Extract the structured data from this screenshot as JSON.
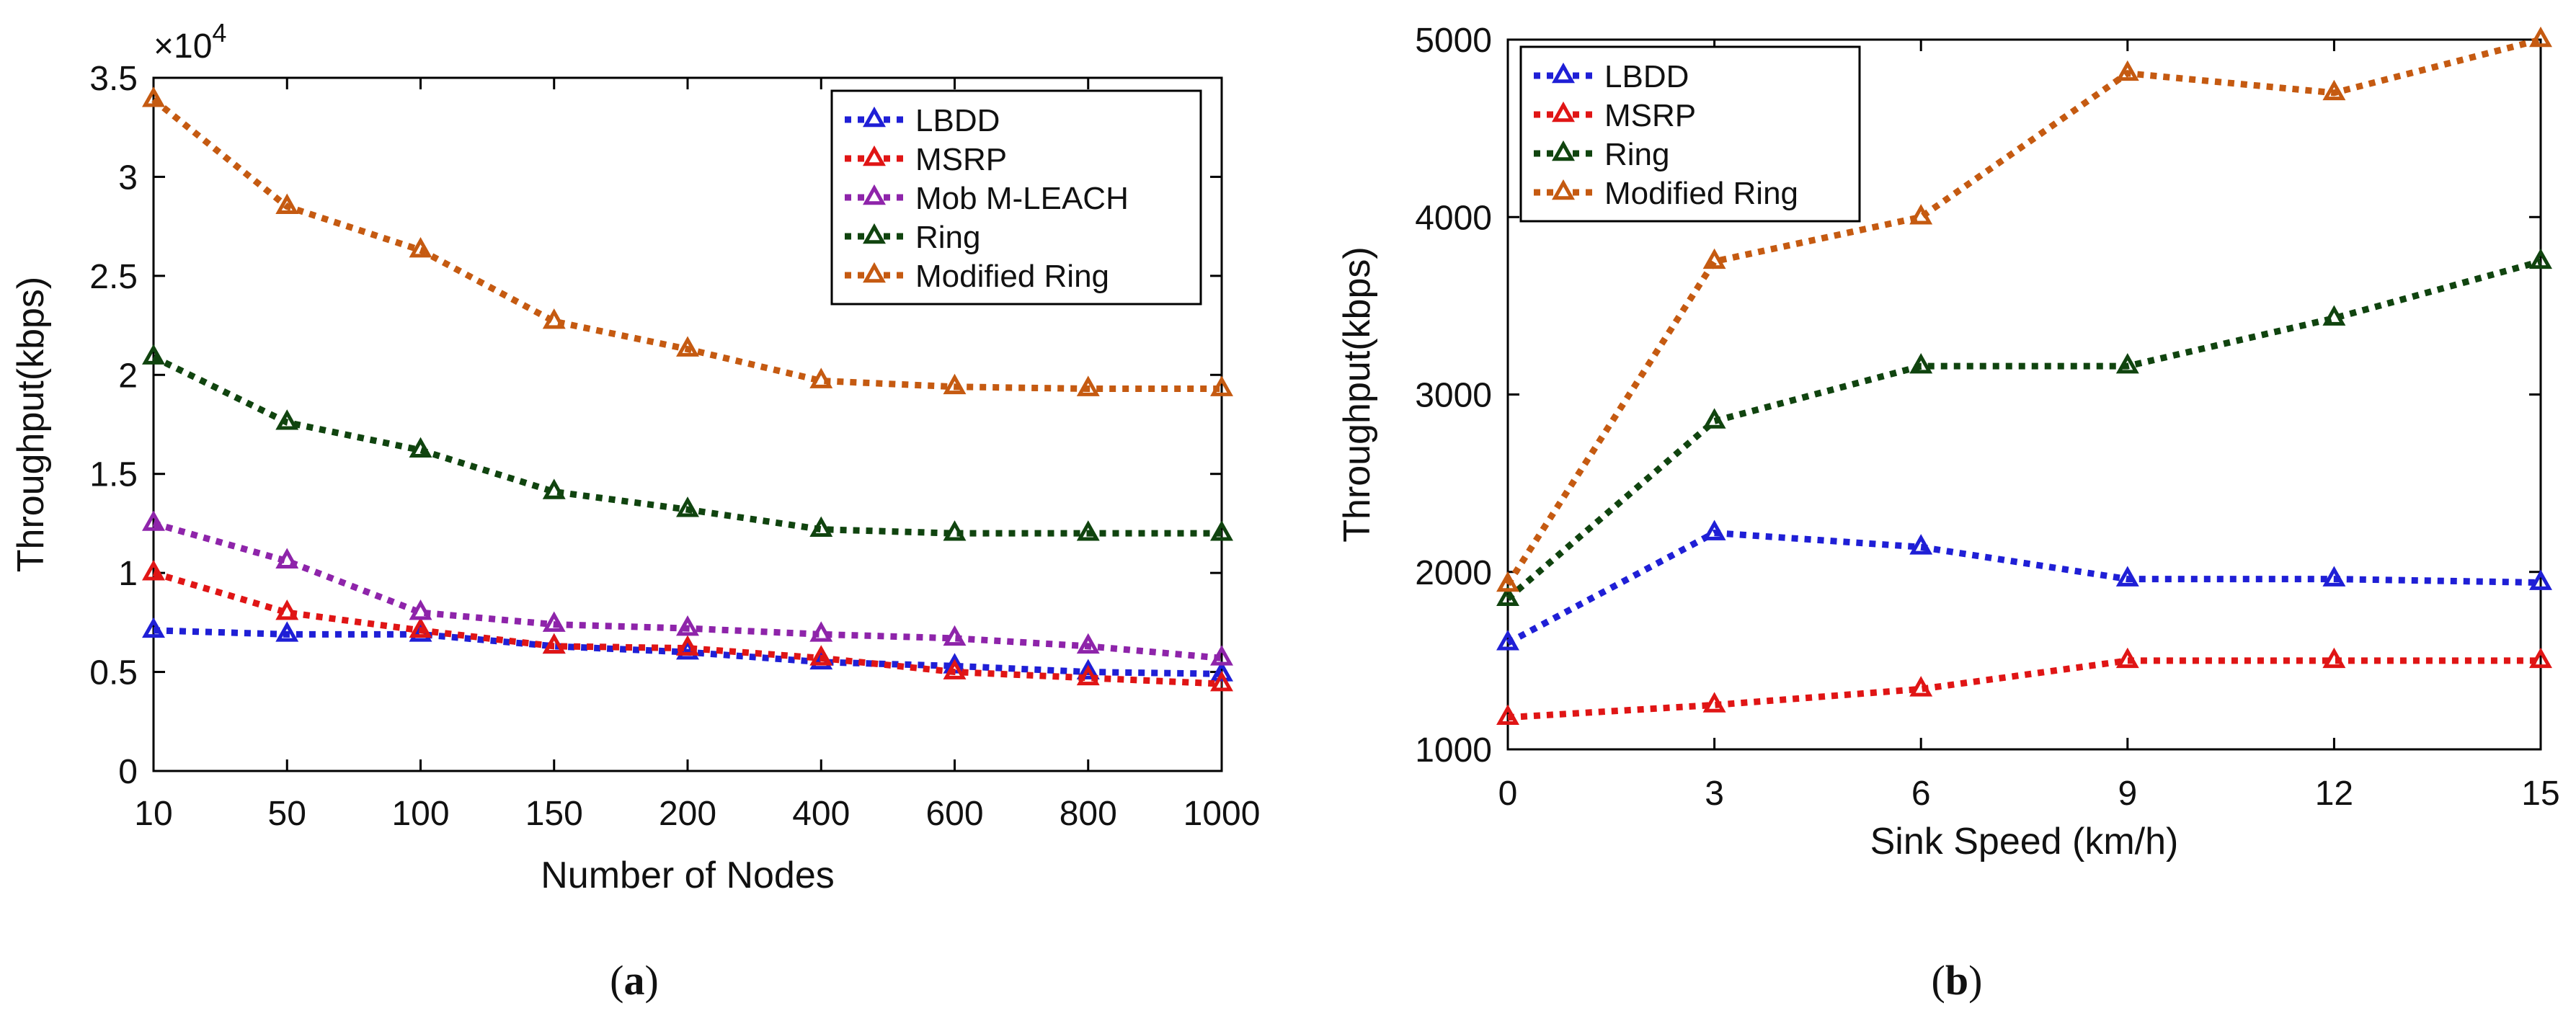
{
  "chart_data": [
    {
      "type": "line",
      "panel_label": "a",
      "title": "",
      "xlabel": "Number of Nodes",
      "ylabel": "Throughput(kbps)",
      "y_exponent_label": "×10",
      "y_exponent_power": "4",
      "categories": [
        "10",
        "50",
        "100",
        "150",
        "200",
        "400",
        "600",
        "800",
        "1000"
      ],
      "ylim": [
        0,
        3.5
      ],
      "yticks": [
        0,
        0.5,
        1,
        1.5,
        2,
        2.5,
        3,
        3.5
      ],
      "ytick_labels": [
        "0",
        "0.5",
        "1",
        "1.5",
        "2",
        "2.5",
        "3",
        "3.5"
      ],
      "legend_position": "top-right",
      "series": [
        {
          "name": "LBDD",
          "color": "#1f1fd6",
          "values": [
            0.71,
            0.69,
            0.69,
            0.63,
            0.6,
            0.55,
            0.53,
            0.5,
            0.49
          ]
        },
        {
          "name": "MSRP",
          "color": "#e01515",
          "values": [
            1.0,
            0.8,
            0.71,
            0.63,
            0.62,
            0.57,
            0.5,
            0.47,
            0.44
          ]
        },
        {
          "name": "Mob M-LEACH",
          "color": "#8e24aa",
          "values": [
            1.25,
            1.06,
            0.8,
            0.74,
            0.72,
            0.69,
            0.67,
            0.63,
            0.57
          ]
        },
        {
          "name": "Ring",
          "color": "#10440f",
          "values": [
            2.09,
            1.76,
            1.62,
            1.41,
            1.32,
            1.22,
            1.2,
            1.2,
            1.2
          ]
        },
        {
          "name": "Modified Ring",
          "color": "#c55a11",
          "values": [
            3.39,
            2.85,
            2.63,
            2.27,
            2.13,
            1.97,
            1.94,
            1.93,
            1.93
          ]
        }
      ]
    },
    {
      "type": "line",
      "panel_label": "b",
      "title": "",
      "xlabel": "Sink Speed (km/h)",
      "ylabel": "Throughput(kbps)",
      "x": [
        0,
        3,
        6,
        9,
        12,
        15
      ],
      "xticks": [
        0,
        3,
        6,
        9,
        12,
        15
      ],
      "xtick_labels": [
        "0",
        "3",
        "6",
        "9",
        "12",
        "15"
      ],
      "xlim": [
        0,
        15
      ],
      "ylim": [
        1000,
        5000
      ],
      "yticks": [
        1000,
        2000,
        3000,
        4000,
        5000
      ],
      "ytick_labels": [
        "1000",
        "2000",
        "3000",
        "4000",
        "5000"
      ],
      "legend_position": "top-left",
      "series": [
        {
          "name": "LBDD",
          "color": "#1f1fd6",
          "values": [
            1600,
            2220,
            2140,
            1960,
            1960,
            1940
          ]
        },
        {
          "name": "MSRP",
          "color": "#e01515",
          "values": [
            1180,
            1250,
            1340,
            1500,
            1500,
            1500
          ]
        },
        {
          "name": "Ring",
          "color": "#10440f",
          "values": [
            1850,
            2850,
            3160,
            3160,
            3430,
            3750
          ]
        },
        {
          "name": "Modified Ring",
          "color": "#c55a11",
          "values": [
            1930,
            3750,
            4000,
            4810,
            4700,
            5000
          ]
        }
      ]
    }
  ]
}
